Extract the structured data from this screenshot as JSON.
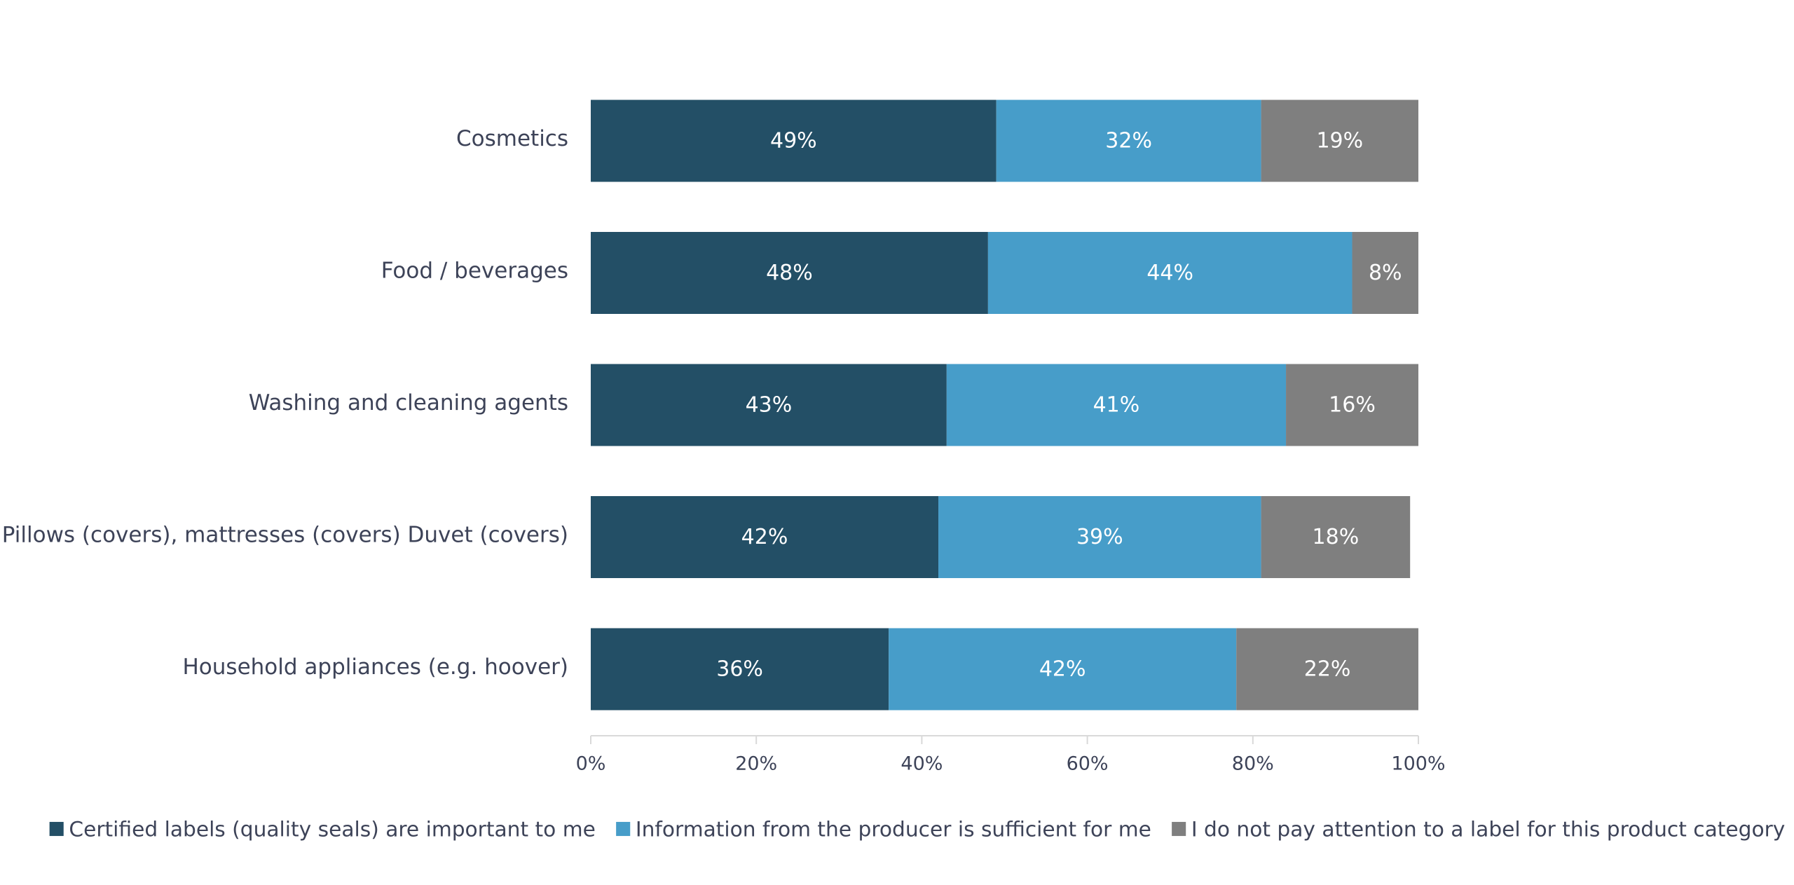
{
  "chart_data": {
    "type": "bar",
    "orientation": "horizontal",
    "stacked": true,
    "title": "",
    "xlabel": "",
    "ylabel": "",
    "xlim": [
      0,
      100
    ],
    "grid": false,
    "legend_position": "bottom",
    "categories": [
      "Cosmetics",
      "Food / beverages",
      "Washing and cleaning agents",
      "Pillows (covers), mattresses (covers) Duvet (covers)",
      "Household appliances (e.g. hoover)"
    ],
    "series": [
      {
        "name": "Certified labels (quality seals) are important to me",
        "color": "#234f66",
        "values": [
          49,
          48,
          43,
          42,
          36
        ]
      },
      {
        "name": "Information from the producer is sufficient for me",
        "color": "#479dc9",
        "values": [
          32,
          44,
          41,
          39,
          42
        ]
      },
      {
        "name": "I do not pay attention to a label  for this product category",
        "color": "#7f7f7f",
        "values": [
          19,
          8,
          16,
          18,
          22
        ]
      }
    ],
    "data_labels": [
      [
        "49%",
        "48%",
        "43%",
        "42%",
        "36%"
      ],
      [
        "32%",
        "44%",
        "41%",
        "39%",
        "42%"
      ],
      [
        "19%",
        "8%",
        "16%",
        "18%",
        "22%"
      ]
    ],
    "x_ticks": [
      0,
      20,
      40,
      60,
      80,
      100
    ],
    "x_tick_labels": [
      "0%",
      "20%",
      "40%",
      "60%",
      "80%",
      "100%"
    ],
    "axis_color": "#d9d9d9"
  }
}
